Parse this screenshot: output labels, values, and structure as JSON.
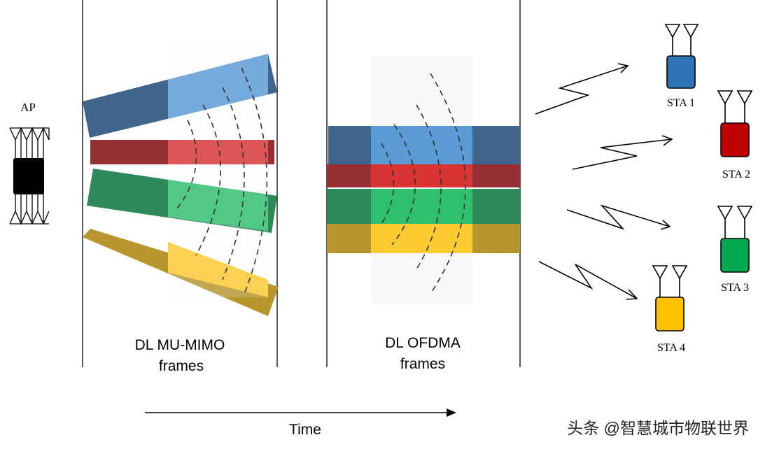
{
  "ap": {
    "label": "AP"
  },
  "mu_mimo": {
    "label_line1": "DL MU-MIMO",
    "label_line2": "frames"
  },
  "ofdma": {
    "label_line1": "DL OFDMA",
    "label_line2": "frames"
  },
  "time": {
    "label": "Time"
  },
  "stations": [
    {
      "label": "STA 1",
      "color": "#2e75b6"
    },
    {
      "label": "STA 2",
      "color": "#c00000"
    },
    {
      "label": "STA 3",
      "color": "#00a94f"
    },
    {
      "label": "STA 4",
      "color": "#ffc000"
    }
  ],
  "streams": [
    {
      "name": "blue",
      "dark": "#41668e",
      "light": "#5b9bd5"
    },
    {
      "name": "red",
      "dark": "#963034",
      "light": "#d93434"
    },
    {
      "name": "green",
      "dark": "#2e8a5a",
      "light": "#2fbf6d"
    },
    {
      "name": "yellow",
      "dark": "#b8962e",
      "light": "#fdca2f"
    }
  ],
  "watermark": {
    "text": "头条 @智慧城市物联世界"
  }
}
